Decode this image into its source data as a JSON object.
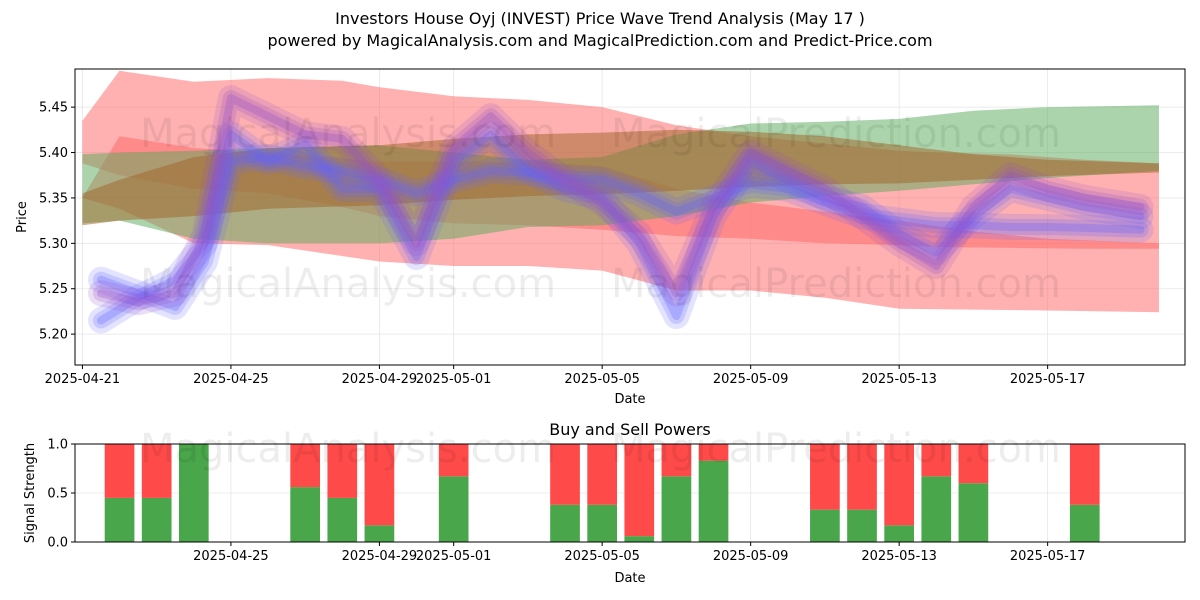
{
  "header": {
    "title": "Investors House Oyj (INVEST) Price Wave Trend Analysis (May 17 )",
    "subtitle": "powered by MagicalAnalysis.com and MagicalPrediction.com and Predict-Price.com"
  },
  "watermarks": {
    "left": "MagicalAnalysis.com",
    "right": "MagicalPrediction.com"
  },
  "chart_data": [
    {
      "type": "area",
      "xlabel": "Date",
      "ylabel": "Price",
      "xlim": [
        "2025-04-20.8",
        "2025-05-20.7"
      ],
      "ylim": [
        5.166,
        5.492
      ],
      "x_ticks": [
        "2025-04-21",
        "2025-04-25",
        "2025-04-29",
        "2025-05-01",
        "2025-05-05",
        "2025-05-09",
        "2025-05-13",
        "2025-05-17"
      ],
      "y_ticks": [
        "5.20",
        "5.25",
        "5.30",
        "5.35",
        "5.40",
        "5.45"
      ],
      "grid": true,
      "colors": {
        "red": "#ff6464",
        "green": "#5aaa5a",
        "blue": "#6464ff",
        "purple": "#9650c8",
        "brown": "#a06428"
      },
      "series": [
        {
          "color": "red",
          "x": [
            "2025-04-21",
            "2025-04-22",
            "2025-04-24",
            "2025-04-26",
            "2025-04-28",
            "2025-04-29",
            "2025-05-01",
            "2025-05-03",
            "2025-05-05",
            "2025-05-07",
            "2025-05-09",
            "2025-05-11",
            "2025-05-13",
            "2025-05-14",
            "2025-05-16",
            "2025-05-18",
            "2025-05-20"
          ],
          "lower": [
            5.388,
            5.375,
            5.36,
            5.355,
            5.34,
            5.33,
            5.322,
            5.32,
            5.315,
            5.308,
            5.305,
            5.3,
            5.298,
            5.296,
            5.295,
            5.294,
            5.294
          ],
          "upper": [
            5.435,
            5.49,
            5.478,
            5.482,
            5.479,
            5.472,
            5.462,
            5.458,
            5.45,
            5.43,
            5.418,
            5.41,
            5.402,
            5.4,
            5.398,
            5.392,
            5.388
          ]
        },
        {
          "color": "red",
          "x": [
            "2025-04-21",
            "2025-04-22",
            "2025-04-24",
            "2025-04-26",
            "2025-04-29",
            "2025-05-01",
            "2025-05-03",
            "2025-05-05",
            "2025-05-07",
            "2025-05-09",
            "2025-05-11",
            "2025-05-13",
            "2025-05-15",
            "2025-05-17",
            "2025-05-20"
          ],
          "lower": [
            5.35,
            5.338,
            5.3,
            5.298,
            5.28,
            5.275,
            5.275,
            5.27,
            5.248,
            5.248,
            5.24,
            5.228,
            5.227,
            5.226,
            5.224
          ],
          "upper": [
            5.35,
            5.418,
            5.405,
            5.4,
            5.39,
            5.39,
            5.39,
            5.385,
            5.36,
            5.345,
            5.335,
            5.325,
            5.313,
            5.305,
            5.3
          ]
        },
        {
          "color": "green",
          "x": [
            "2025-04-21",
            "2025-04-22",
            "2025-04-24",
            "2025-04-26",
            "2025-04-29",
            "2025-05-01",
            "2025-05-03",
            "2025-05-05",
            "2025-05-07",
            "2025-05-09",
            "2025-05-11",
            "2025-05-13",
            "2025-05-15",
            "2025-05-17",
            "2025-05-20"
          ],
          "lower": [
            5.322,
            5.325,
            5.305,
            5.3,
            5.3,
            5.305,
            5.318,
            5.32,
            5.33,
            5.345,
            5.352,
            5.358,
            5.365,
            5.372,
            5.38
          ],
          "upper": [
            5.398,
            5.4,
            5.402,
            5.405,
            5.408,
            5.4,
            5.392,
            5.395,
            5.42,
            5.432,
            5.434,
            5.437,
            5.446,
            5.45,
            5.452
          ]
        },
        {
          "color": "brown",
          "x": [
            "2025-04-21",
            "2025-04-22",
            "2025-04-24",
            "2025-04-26",
            "2025-04-29",
            "2025-05-01",
            "2025-05-03",
            "2025-05-05",
            "2025-05-07",
            "2025-05-09",
            "2025-05-11",
            "2025-05-13",
            "2025-05-15",
            "2025-05-17",
            "2025-05-20"
          ],
          "lower": [
            5.32,
            5.325,
            5.33,
            5.338,
            5.342,
            5.348,
            5.352,
            5.354,
            5.358,
            5.362,
            5.365,
            5.366,
            5.37,
            5.374,
            5.378
          ],
          "upper": [
            5.355,
            5.37,
            5.395,
            5.405,
            5.408,
            5.415,
            5.42,
            5.422,
            5.425,
            5.423,
            5.418,
            5.408,
            5.398,
            5.392,
            5.388
          ]
        },
        {
          "color": "blue",
          "x": [
            "2025-04-21.5",
            "2025-04-22.5",
            "2025-04-23.5",
            "2025-04-24.3",
            "2025-04-25",
            "2025-04-26",
            "2025-04-27",
            "2025-04-28",
            "2025-04-29",
            "2025-04-30",
            "2025-05-01",
            "2025-05-02",
            "2025-05-03",
            "2025-05-04",
            "2025-05-05",
            "2025-05-06",
            "2025-05-07",
            "2025-05-08",
            "2025-05-09",
            "2025-05-10",
            "2025-05-11",
            "2025-05-12",
            "2025-05-13",
            "2025-05-14",
            "2025-05-15",
            "2025-05-16",
            "2025-05-17",
            "2025-05-18",
            "2025-05-19.5"
          ],
          "values": [
            5.215,
            5.24,
            5.26,
            5.3,
            5.42,
            5.39,
            5.41,
            5.36,
            5.36,
            5.285,
            5.39,
            5.42,
            5.38,
            5.36,
            5.35,
            5.3,
            5.22,
            5.33,
            5.39,
            5.37,
            5.35,
            5.34,
            5.31,
            5.29,
            5.33,
            5.36,
            5.35,
            5.34,
            5.33
          ]
        },
        {
          "color": "blue",
          "x": [
            "2025-04-21.5",
            "2025-04-22.5",
            "2025-04-23.5",
            "2025-04-24.3",
            "2025-04-25",
            "2025-04-26",
            "2025-04-27",
            "2025-04-28",
            "2025-04-29",
            "2025-04-30",
            "2025-05-01",
            "2025-05-02",
            "2025-05-03",
            "2025-05-04",
            "2025-05-05",
            "2025-05-06",
            "2025-05-07",
            "2025-05-08",
            "2025-05-09",
            "2025-05-10",
            "2025-05-11",
            "2025-05-12",
            "2025-05-13",
            "2025-05-14",
            "2025-05-15",
            "2025-05-16",
            "2025-05-17",
            "2025-05-18",
            "2025-05-19.5"
          ],
          "values": [
            5.26,
            5.245,
            5.23,
            5.28,
            5.39,
            5.395,
            5.385,
            5.38,
            5.37,
            5.355,
            5.37,
            5.38,
            5.378,
            5.372,
            5.37,
            5.355,
            5.335,
            5.35,
            5.365,
            5.36,
            5.345,
            5.33,
            5.325,
            5.32,
            5.32,
            5.318,
            5.318,
            5.317,
            5.315
          ]
        },
        {
          "color": "purple",
          "x": [
            "2025-04-21.5",
            "2025-04-22.5",
            "2025-04-23.5",
            "2025-04-24.3",
            "2025-04-25",
            "2025-04-26",
            "2025-04-27",
            "2025-04-28",
            "2025-04-29",
            "2025-04-30",
            "2025-05-01",
            "2025-05-02",
            "2025-05-03",
            "2025-05-04",
            "2025-05-05",
            "2025-05-06",
            "2025-05-07",
            "2025-05-08",
            "2025-05-09",
            "2025-05-10",
            "2025-05-11",
            "2025-05-12",
            "2025-05-13",
            "2025-05-14",
            "2025-05-15",
            "2025-05-16",
            "2025-05-17",
            "2025-05-18",
            "2025-05-19.5"
          ],
          "values": [
            5.245,
            5.235,
            5.245,
            5.31,
            5.46,
            5.44,
            5.42,
            5.415,
            5.37,
            5.3,
            5.405,
            5.44,
            5.4,
            5.37,
            5.345,
            5.31,
            5.245,
            5.34,
            5.4,
            5.38,
            5.36,
            5.33,
            5.3,
            5.275,
            5.34,
            5.375,
            5.36,
            5.35,
            5.34
          ]
        }
      ]
    },
    {
      "type": "bar",
      "title": "Buy and Sell Powers",
      "xlabel": "Date",
      "ylabel": "Signal Strength",
      "xlim": [
        "2025-04-20.8",
        "2025-05-20.7"
      ],
      "ylim": [
        0,
        1
      ],
      "x_ticks": [
        "2025-04-25",
        "2025-04-29",
        "2025-05-01",
        "2025-05-05",
        "2025-05-09",
        "2025-05-13",
        "2025-05-17"
      ],
      "y_ticks": [
        "0.0",
        "0.5",
        "1.0"
      ],
      "grid": true,
      "colors": {
        "buy": "#4aa64a",
        "sell": "#ff4a4a"
      },
      "x": [
        "2025-04-22",
        "2025-04-23",
        "2025-04-24",
        "2025-04-27",
        "2025-04-28",
        "2025-04-29",
        "2025-05-01",
        "2025-05-04",
        "2025-05-05",
        "2025-05-06",
        "2025-05-07",
        "2025-05-08",
        "2025-05-11",
        "2025-05-12",
        "2025-05-13",
        "2025-05-14",
        "2025-05-15",
        "2025-05-18"
      ],
      "series": [
        {
          "name": "buy",
          "values": [
            0.45,
            0.45,
            1.0,
            0.56,
            0.45,
            0.17,
            0.67,
            0.38,
            0.38,
            0.06,
            0.67,
            0.83,
            0.33,
            0.33,
            0.17,
            0.67,
            0.6,
            0.38
          ]
        },
        {
          "name": "sell",
          "values": [
            0.55,
            0.55,
            0.0,
            0.44,
            0.55,
            0.83,
            0.33,
            0.62,
            0.62,
            0.94,
            0.33,
            0.17,
            0.67,
            0.67,
            0.83,
            0.33,
            0.4,
            0.62
          ]
        }
      ]
    }
  ]
}
